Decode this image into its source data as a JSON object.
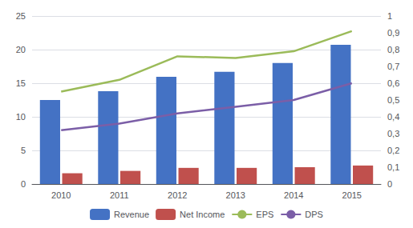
{
  "chart_data": {
    "type": "bar",
    "categories": [
      "2010",
      "2011",
      "2012",
      "2013",
      "2014",
      "2015"
    ],
    "series": [
      {
        "name": "Revenue",
        "type": "bar",
        "color": "#4472C4",
        "values": [
          12.5,
          13.8,
          15.95,
          16.7,
          18.0,
          20.7
        ]
      },
      {
        "name": "Net Income",
        "type": "bar",
        "color": "#C0504D",
        "values": [
          1.6,
          1.95,
          2.4,
          2.4,
          2.5,
          2.75
        ]
      },
      {
        "name": "EPS",
        "type": "line",
        "color": "#9BBB59",
        "axis": "y2",
        "marker": "none",
        "values": [
          0.55,
          0.62,
          0.76,
          0.75,
          0.79,
          0.91
        ]
      },
      {
        "name": "DPS",
        "type": "line",
        "color": "#7B5EA7",
        "axis": "y2",
        "marker": "none",
        "values": [
          0.32,
          0.36,
          0.42,
          0.46,
          0.5,
          0.6
        ]
      }
    ],
    "ylim": [
      0,
      25
    ],
    "yticks": [
      0,
      5,
      10,
      15,
      20,
      25
    ],
    "y2lim": [
      0,
      1
    ],
    "y2ticks": [
      0,
      {
        "value": 0.1,
        "label": "0,1"
      },
      {
        "value": 0.2,
        "label": "0,2"
      },
      {
        "value": 0.3,
        "label": "0,3"
      },
      {
        "value": 0.4,
        "label": "0,4"
      },
      {
        "value": 0.5,
        "label": "0,5"
      },
      {
        "value": 0.6,
        "label": "0,6"
      },
      {
        "value": 0.7,
        "label": "0,7"
      },
      {
        "value": 0.8,
        "label": "0,8"
      },
      {
        "value": 0.9,
        "label": "0,9"
      },
      1
    ],
    "grid": true,
    "legend": "bottom"
  }
}
